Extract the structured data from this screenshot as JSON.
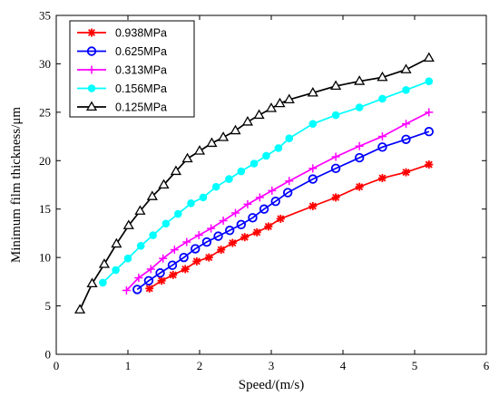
{
  "chart_data": {
    "type": "line",
    "xlabel": "Speed/(m/s)",
    "ylabel": "Minimum film thickness/μm",
    "xlim": [
      0,
      6
    ],
    "ylim": [
      0,
      35
    ],
    "xticks": [
      0,
      1,
      2,
      3,
      4,
      5,
      6
    ],
    "yticks": [
      0,
      5,
      10,
      15,
      20,
      25,
      30,
      35
    ],
    "grid": false,
    "legend_position": "top-left",
    "series": [
      {
        "name": "0.938MPa",
        "color": "#ff0000",
        "marker": "star",
        "x": [
          1.3,
          1.47,
          1.63,
          1.8,
          1.96,
          2.13,
          2.3,
          2.46,
          2.63,
          2.8,
          2.96,
          3.13,
          3.58,
          3.9,
          4.23,
          4.55,
          4.88,
          5.2
        ],
        "y": [
          6.8,
          7.6,
          8.2,
          8.8,
          9.6,
          10.0,
          10.8,
          11.5,
          12.1,
          12.6,
          13.2,
          14.0,
          15.3,
          16.2,
          17.3,
          18.2,
          18.8,
          19.6
        ]
      },
      {
        "name": "0.625MPa",
        "color": "#0000ff",
        "marker": "circle",
        "x": [
          1.13,
          1.29,
          1.45,
          1.62,
          1.78,
          1.94,
          2.1,
          2.26,
          2.42,
          2.58,
          2.74,
          2.9,
          3.06,
          3.23,
          3.58,
          3.9,
          4.23,
          4.55,
          4.88,
          5.2
        ],
        "y": [
          6.7,
          7.6,
          8.4,
          9.2,
          10.0,
          10.9,
          11.6,
          12.2,
          12.8,
          13.4,
          14.1,
          15.0,
          15.8,
          16.7,
          18.1,
          19.2,
          20.3,
          21.4,
          22.2,
          23.0
        ]
      },
      {
        "name": "0.313MPa",
        "color": "#ff00ff",
        "marker": "plus",
        "x": [
          0.98,
          1.15,
          1.32,
          1.49,
          1.65,
          1.82,
          1.99,
          2.16,
          2.33,
          2.5,
          2.67,
          2.84,
          3.01,
          3.25,
          3.58,
          3.9,
          4.23,
          4.55,
          4.88,
          5.2
        ],
        "y": [
          6.6,
          7.9,
          8.8,
          9.9,
          10.8,
          11.6,
          12.3,
          13.0,
          13.8,
          14.6,
          15.5,
          16.2,
          16.9,
          17.9,
          19.2,
          20.4,
          21.5,
          22.5,
          23.8,
          25.0
        ]
      },
      {
        "name": "0.156MPa",
        "color": "#00ffff",
        "marker": "filled-circle",
        "x": [
          0.65,
          0.83,
          1.0,
          1.18,
          1.35,
          1.53,
          1.7,
          1.88,
          2.05,
          2.23,
          2.41,
          2.58,
          2.76,
          2.93,
          3.1,
          3.25,
          3.58,
          3.9,
          4.23,
          4.55,
          4.88,
          5.2
        ],
        "y": [
          7.4,
          8.7,
          9.9,
          11.2,
          12.3,
          13.5,
          14.5,
          15.6,
          16.2,
          17.3,
          18.1,
          18.9,
          19.7,
          20.5,
          21.3,
          22.3,
          23.8,
          24.7,
          25.5,
          26.4,
          27.3,
          28.2
        ]
      },
      {
        "name": "0.125MPa",
        "color": "#000000",
        "marker": "triangle",
        "x": [
          0.33,
          0.5,
          0.67,
          0.84,
          1.01,
          1.17,
          1.34,
          1.5,
          1.67,
          1.83,
          2.0,
          2.17,
          2.33,
          2.5,
          2.67,
          2.83,
          3.0,
          3.12,
          3.25,
          3.58,
          3.9,
          4.23,
          4.55,
          4.88,
          5.2
        ],
        "y": [
          4.6,
          7.3,
          9.3,
          11.4,
          13.3,
          14.8,
          16.3,
          17.5,
          18.9,
          20.2,
          21.0,
          21.8,
          22.4,
          23.1,
          24.0,
          24.7,
          25.4,
          25.9,
          26.3,
          27.0,
          27.7,
          28.2,
          28.6,
          29.4,
          30.6
        ]
      }
    ]
  }
}
